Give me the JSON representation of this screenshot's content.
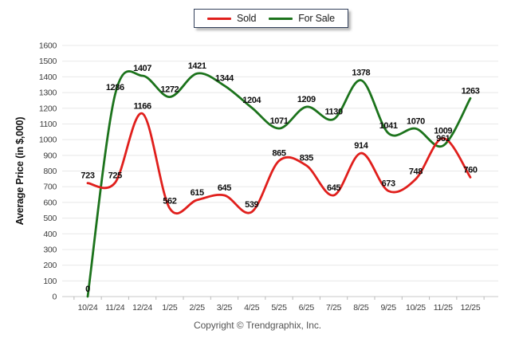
{
  "legend": {
    "note": "series names shown in legend come from chart_data.series"
  },
  "footer": {
    "copyright": "Copyright © Trendgraphix, Inc."
  },
  "chart_data": {
    "type": "line",
    "title": "",
    "xlabel": "",
    "ylabel": "Average Price (in $,000)",
    "categories": [
      "10/24",
      "11/24",
      "12/24",
      "1/25",
      "2/25",
      "3/25",
      "4/25",
      "5/25",
      "6/25",
      "7/25",
      "8/25",
      "9/25",
      "10/25",
      "11/25",
      "12/25"
    ],
    "series": [
      {
        "name": "Sold",
        "color": "#e01f1c",
        "values": [
          723,
          725,
          1166,
          562,
          615,
          645,
          539,
          865,
          835,
          645,
          914,
          673,
          748,
          1009,
          760
        ]
      },
      {
        "name": "For Sale",
        "color": "#1c731c",
        "values": [
          0,
          1286,
          1407,
          1272,
          1421,
          1344,
          1204,
          1071,
          1209,
          1130,
          1378,
          1041,
          1070,
          961,
          1263
        ]
      }
    ],
    "ylim": [
      0,
      1600
    ],
    "yticks": [
      0,
      100,
      200,
      300,
      400,
      500,
      600,
      700,
      800,
      900,
      1000,
      1100,
      1200,
      1300,
      1400,
      1500,
      1600
    ],
    "grid": "horizontal",
    "line_style": "smooth",
    "data_labels": true,
    "legend_position": "top-center",
    "draw_order": "Sold drawn on top of For Sale"
  }
}
